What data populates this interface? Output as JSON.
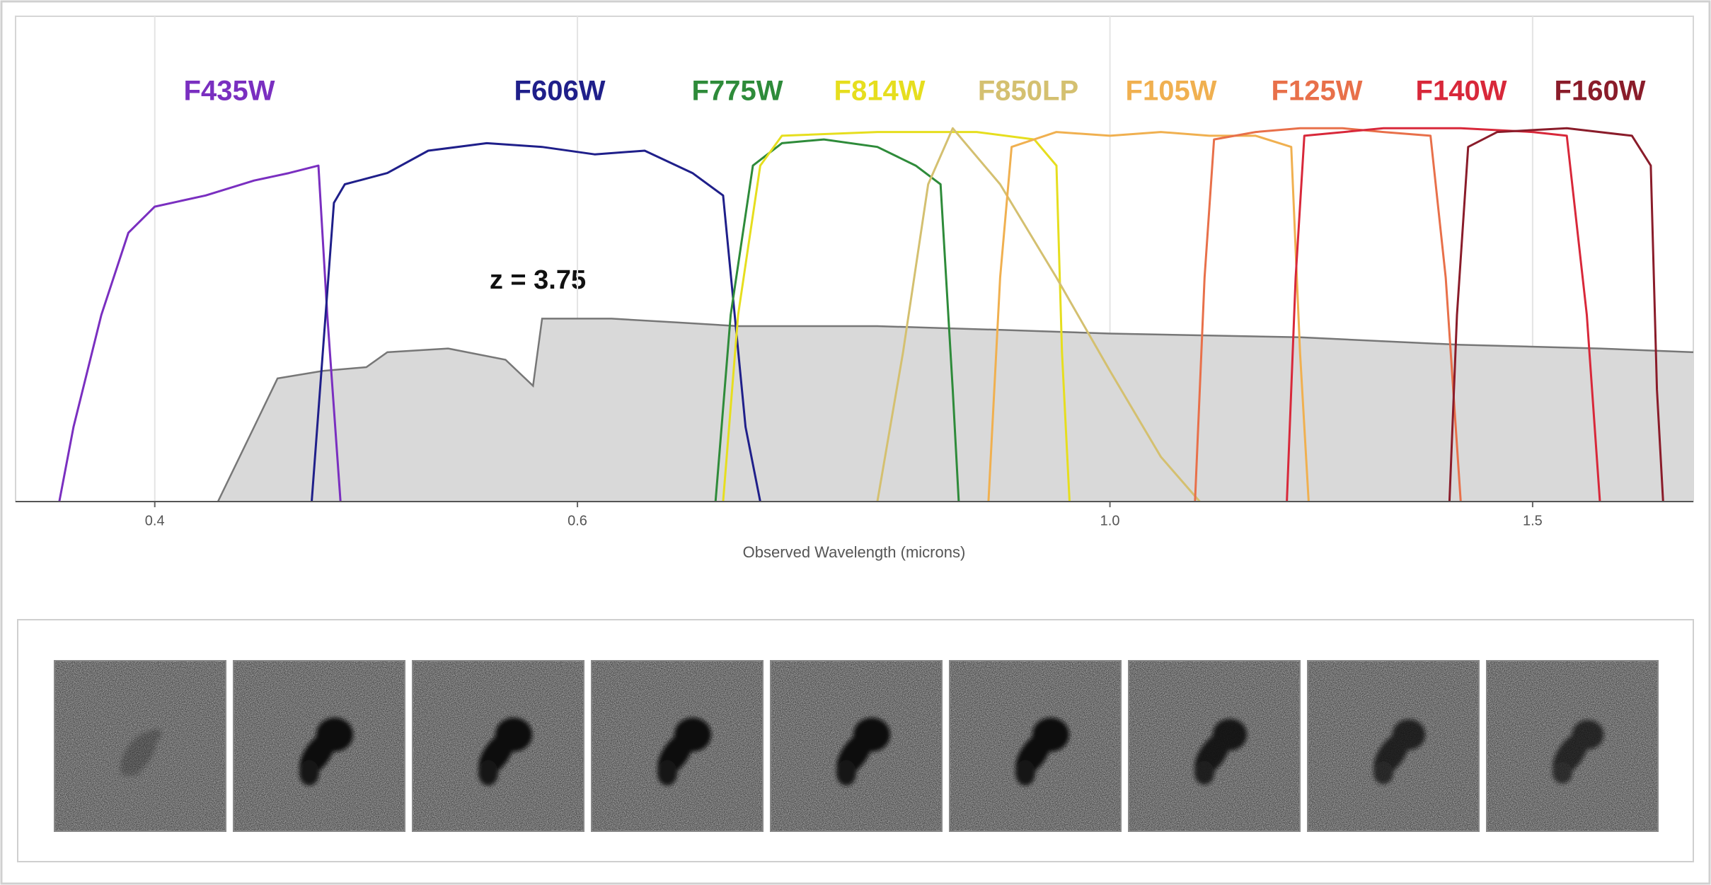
{
  "chart_data": {
    "type": "line",
    "xlabel": "Observed Wavelength (microns)",
    "annotation": "z = 3.75",
    "xlim": [
      0.35,
      1.75
    ],
    "ylim": [
      0,
      1.3
    ],
    "xscale": "log",
    "grid": true,
    "xticks": [
      0.4,
      0.6,
      {
        "value": 1,
        "label": "1.0"
      },
      1.5
    ],
    "area": {
      "color": "#d9d9d9",
      "x": [
        0.425,
        0.44,
        0.45,
        0.47,
        0.49,
        0.5,
        0.53,
        0.56,
        0.575,
        0.58,
        0.62,
        0.66,
        0.7,
        0.8,
        0.9,
        1.0,
        1.2,
        1.4,
        1.6,
        1.75
      ],
      "values": [
        0,
        0.2,
        0.33,
        0.35,
        0.36,
        0.4,
        0.41,
        0.38,
        0.31,
        0.49,
        0.49,
        0.48,
        0.47,
        0.47,
        0.46,
        0.45,
        0.44,
        0.42,
        0.41,
        0.4
      ]
    },
    "series": [
      {
        "name": "F435W",
        "color": "#7a2fc0",
        "x": [
          0.365,
          0.37,
          0.38,
          0.39,
          0.4,
          0.42,
          0.44,
          0.455,
          0.468,
          0.472,
          0.478
        ],
        "values": [
          0,
          0.2,
          0.5,
          0.72,
          0.79,
          0.82,
          0.86,
          0.88,
          0.9,
          0.5,
          0
        ]
      },
      {
        "name": "F606W",
        "color": "#1f1f8a",
        "x": [
          0.465,
          0.475,
          0.48,
          0.5,
          0.52,
          0.55,
          0.58,
          0.61,
          0.64,
          0.67,
          0.69,
          0.705,
          0.715
        ],
        "values": [
          0,
          0.8,
          0.85,
          0.88,
          0.94,
          0.96,
          0.95,
          0.93,
          0.94,
          0.88,
          0.82,
          0.2,
          0
        ]
      },
      {
        "name": "F775W",
        "color": "#2e8b3a",
        "x": [
          0.685,
          0.695,
          0.71,
          0.73,
          0.76,
          0.8,
          0.83,
          0.85,
          0.86,
          0.865
        ],
        "values": [
          0,
          0.5,
          0.9,
          0.96,
          0.97,
          0.95,
          0.9,
          0.85,
          0.3,
          0
        ]
      },
      {
        "name": "F814W",
        "color": "#e6de1e",
        "x": [
          0.69,
          0.7,
          0.715,
          0.73,
          0.8,
          0.88,
          0.93,
          0.95,
          0.955,
          0.962
        ],
        "values": [
          0,
          0.5,
          0.9,
          0.98,
          0.99,
          0.99,
          0.97,
          0.9,
          0.4,
          0
        ]
      },
      {
        "name": "F850LP",
        "color": "#d4c070",
        "x": [
          0.8,
          0.82,
          0.84,
          0.86,
          0.9,
          0.95,
          1.0,
          1.05,
          1.09
        ],
        "values": [
          0,
          0.4,
          0.85,
          1.0,
          0.85,
          0.6,
          0.35,
          0.12,
          0
        ]
      },
      {
        "name": "F105W",
        "color": "#f0b050",
        "x": [
          0.89,
          0.9,
          0.91,
          0.95,
          1.0,
          1.05,
          1.1,
          1.15,
          1.19,
          1.2,
          1.21
        ],
        "values": [
          0,
          0.6,
          0.95,
          0.99,
          0.98,
          0.99,
          0.98,
          0.98,
          0.95,
          0.4,
          0
        ]
      },
      {
        "name": "F125W",
        "color": "#e8704a",
        "x": [
          1.085,
          1.095,
          1.105,
          1.15,
          1.2,
          1.25,
          1.3,
          1.36,
          1.38,
          1.4
        ],
        "values": [
          0,
          0.6,
          0.97,
          0.99,
          1.0,
          1.0,
          0.99,
          0.98,
          0.6,
          0
        ]
      },
      {
        "name": "F140W",
        "color": "#d8283a",
        "x": [
          1.185,
          1.195,
          1.205,
          1.3,
          1.4,
          1.5,
          1.55,
          1.58,
          1.6
        ],
        "values": [
          0,
          0.6,
          0.98,
          1.0,
          1.0,
          0.99,
          0.98,
          0.5,
          0
        ]
      },
      {
        "name": "F160W",
        "color": "#8a1c2a",
        "x": [
          1.385,
          1.395,
          1.41,
          1.45,
          1.55,
          1.65,
          1.68,
          1.69,
          1.7
        ],
        "values": [
          0,
          0.5,
          0.95,
          0.99,
          1.0,
          0.98,
          0.9,
          0.3,
          0
        ]
      }
    ]
  }
}
